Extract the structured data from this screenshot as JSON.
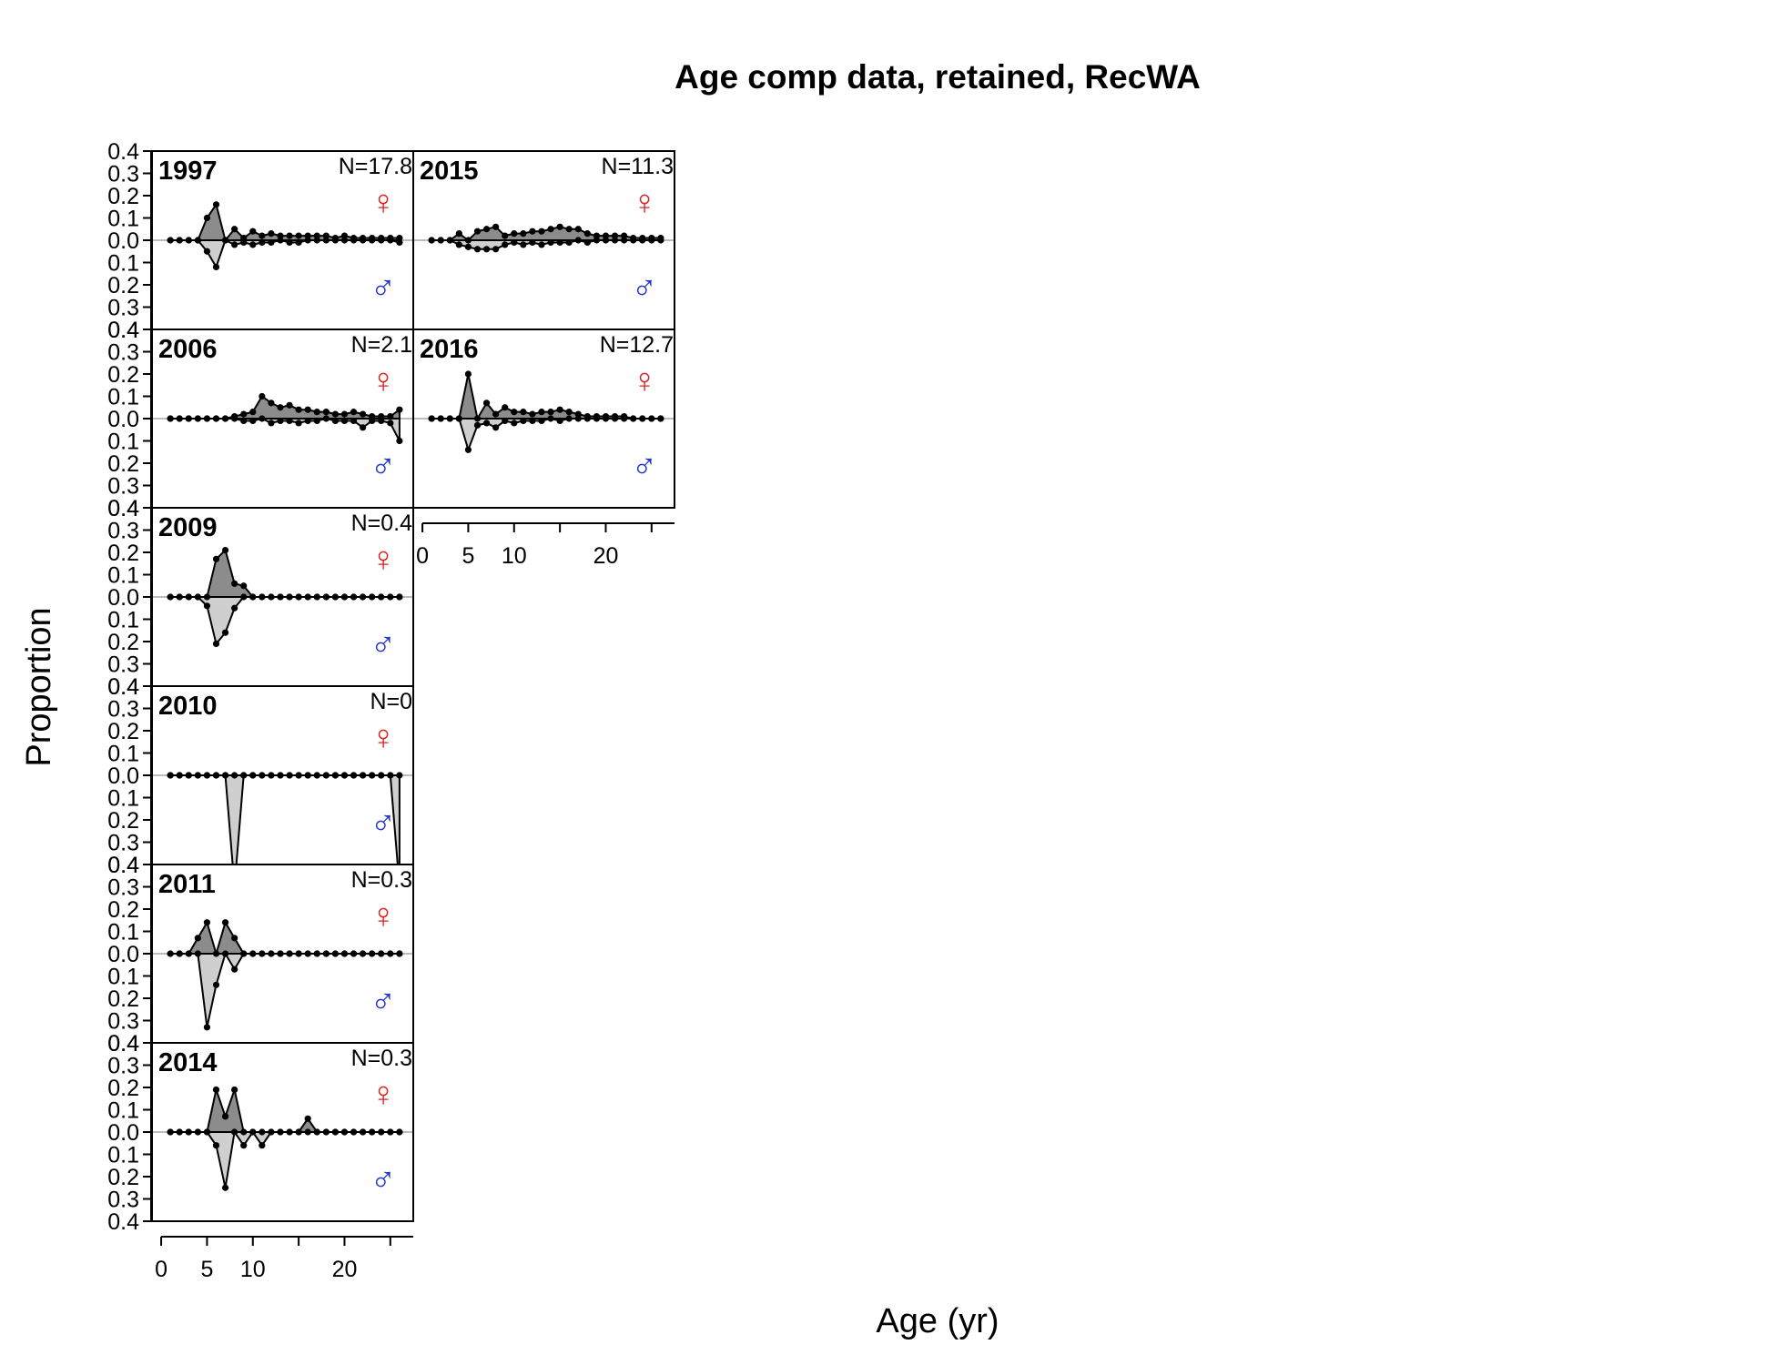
{
  "chart_data": {
    "type": "area",
    "title": "Age comp data, retained, RecWA",
    "xlabel": "Age (yr)",
    "ylabel": "Proportion",
    "xlim": [
      -1,
      27.5
    ],
    "ylim": [
      -0.4,
      0.4
    ],
    "x_ticks": [
      0,
      5,
      10,
      20
    ],
    "y_tick_labels": [
      "0.4",
      "0.3",
      "0.2",
      "0.1",
      "0.0",
      "0.1",
      "0.2",
      "0.3",
      "0.4"
    ],
    "female_symbol": "♀",
    "male_symbol": "♂",
    "colors": {
      "female_fill": "#8c8c8c",
      "male_fill": "#cfcfcf",
      "female_symbol": "#dd2222",
      "male_symbol": "#2233cc",
      "zero_line": "#bdbdbd"
    },
    "ages": [
      1,
      2,
      3,
      4,
      5,
      6,
      7,
      8,
      9,
      10,
      11,
      12,
      13,
      14,
      15,
      16,
      17,
      18,
      19,
      20,
      21,
      22,
      23,
      24,
      25,
      26
    ],
    "panels": [
      {
        "year": "1997",
        "n_label": "N=17.8",
        "col": 0,
        "row": 0,
        "female": [
          0,
          0,
          0,
          0,
          0.1,
          0.16,
          0,
          0.05,
          0.01,
          0.04,
          0.02,
          0.03,
          0.02,
          0.02,
          0.02,
          0.02,
          0.02,
          0.02,
          0.01,
          0.02,
          0.01,
          0.01,
          0.01,
          0.01,
          0.01,
          0.01
        ],
        "male": [
          0,
          0,
          0,
          0,
          -0.05,
          -0.12,
          0,
          -0.02,
          -0.01,
          -0.02,
          -0.01,
          -0.01,
          0,
          -0.01,
          -0.01,
          0,
          0,
          0,
          0,
          0,
          0,
          0,
          0,
          0,
          0,
          -0.01
        ]
      },
      {
        "year": "2006",
        "n_label": "N=2.1",
        "col": 0,
        "row": 1,
        "female": [
          0,
          0,
          0,
          0,
          0,
          0,
          0,
          0.01,
          0.02,
          0.03,
          0.1,
          0.07,
          0.05,
          0.06,
          0.04,
          0.04,
          0.03,
          0.03,
          0.02,
          0.02,
          0.03,
          0.02,
          0.01,
          0.01,
          0.01,
          0.04
        ],
        "male": [
          0,
          0,
          0,
          0,
          0,
          0,
          0,
          0,
          -0.01,
          -0.01,
          0,
          -0.02,
          -0.01,
          -0.01,
          -0.02,
          -0.01,
          -0.01,
          0,
          -0.01,
          -0.01,
          -0.01,
          -0.04,
          -0.01,
          -0.01,
          -0.02,
          -0.1
        ]
      },
      {
        "year": "2009",
        "n_label": "N=0.4",
        "col": 0,
        "row": 2,
        "female": [
          0,
          0,
          0,
          0,
          0,
          0.17,
          0.21,
          0.06,
          0.05,
          0,
          0,
          0,
          0,
          0,
          0,
          0,
          0,
          0,
          0,
          0,
          0,
          0,
          0,
          0,
          0,
          0
        ],
        "male": [
          0,
          0,
          0,
          0,
          -0.04,
          -0.21,
          -0.16,
          -0.05,
          0,
          0,
          0,
          0,
          0,
          0,
          0,
          0,
          0,
          0,
          0,
          0,
          0,
          0,
          0,
          0,
          0,
          0
        ]
      },
      {
        "year": "2010",
        "n_label": "N=0",
        "col": 0,
        "row": 3,
        "female": [
          0,
          0,
          0,
          0,
          0,
          0,
          0,
          0,
          0,
          0,
          0,
          0,
          0,
          0,
          0,
          0,
          0,
          0,
          0,
          0,
          0,
          0,
          0,
          0,
          0,
          0
        ],
        "male": [
          0,
          0,
          0,
          0,
          0,
          0,
          0,
          -0.5,
          0,
          0,
          0,
          0,
          0,
          0,
          0,
          0,
          0,
          0,
          0,
          0,
          0,
          0,
          0,
          0,
          0,
          -0.5
        ]
      },
      {
        "year": "2011",
        "n_label": "N=0.3",
        "col": 0,
        "row": 4,
        "female": [
          0,
          0,
          0,
          0.07,
          0.14,
          0,
          0.14,
          0.07,
          0,
          0,
          0,
          0,
          0,
          0,
          0,
          0,
          0,
          0,
          0,
          0,
          0,
          0,
          0,
          0,
          0,
          0
        ],
        "male": [
          0,
          0,
          0,
          0,
          -0.33,
          -0.14,
          0,
          -0.07,
          0,
          0,
          0,
          0,
          0,
          0,
          0,
          0,
          0,
          0,
          0,
          0,
          0,
          0,
          0,
          0,
          0,
          0
        ]
      },
      {
        "year": "2014",
        "n_label": "N=0.3",
        "col": 0,
        "row": 5,
        "female": [
          0,
          0,
          0,
          0,
          0,
          0.19,
          0.07,
          0.19,
          0,
          0,
          0,
          0,
          0,
          0,
          0,
          0.06,
          0,
          0,
          0,
          0,
          0,
          0,
          0,
          0,
          0,
          0
        ],
        "male": [
          0,
          0,
          0,
          0,
          0,
          -0.06,
          -0.25,
          0,
          -0.06,
          0,
          -0.06,
          0,
          0,
          0,
          0,
          0,
          0,
          0,
          0,
          0,
          0,
          0,
          0,
          0,
          0,
          0
        ]
      },
      {
        "year": "2015",
        "n_label": "N=11.3",
        "col": 1,
        "row": 0,
        "female": [
          0,
          0,
          0,
          0.03,
          0,
          0.04,
          0.05,
          0.06,
          0.02,
          0.03,
          0.03,
          0.04,
          0.04,
          0.05,
          0.06,
          0.05,
          0.05,
          0.03,
          0.02,
          0.02,
          0.02,
          0.02,
          0.01,
          0.01,
          0.01,
          0.01
        ],
        "male": [
          0,
          0,
          0,
          -0.02,
          -0.03,
          -0.04,
          -0.04,
          -0.04,
          -0.02,
          -0.01,
          -0.02,
          -0.01,
          -0.02,
          -0.01,
          -0.01,
          -0.01,
          0,
          -0.01,
          0,
          0,
          0,
          0,
          0,
          0,
          0,
          0
        ]
      },
      {
        "year": "2016",
        "n_label": "N=12.7",
        "col": 1,
        "row": 1,
        "female": [
          0,
          0,
          0,
          0,
          0.2,
          0,
          0.07,
          0.02,
          0.05,
          0.03,
          0.03,
          0.02,
          0.03,
          0.03,
          0.04,
          0.03,
          0.02,
          0.01,
          0.01,
          0.01,
          0.01,
          0.01,
          0,
          0,
          0,
          0
        ],
        "male": [
          0,
          0,
          0,
          0,
          -0.14,
          -0.03,
          -0.02,
          -0.04,
          -0.01,
          -0.02,
          -0.01,
          -0.01,
          -0.01,
          0,
          -0.01,
          0,
          0,
          0,
          0,
          0,
          0,
          0,
          0,
          0,
          0,
          0
        ]
      }
    ]
  }
}
